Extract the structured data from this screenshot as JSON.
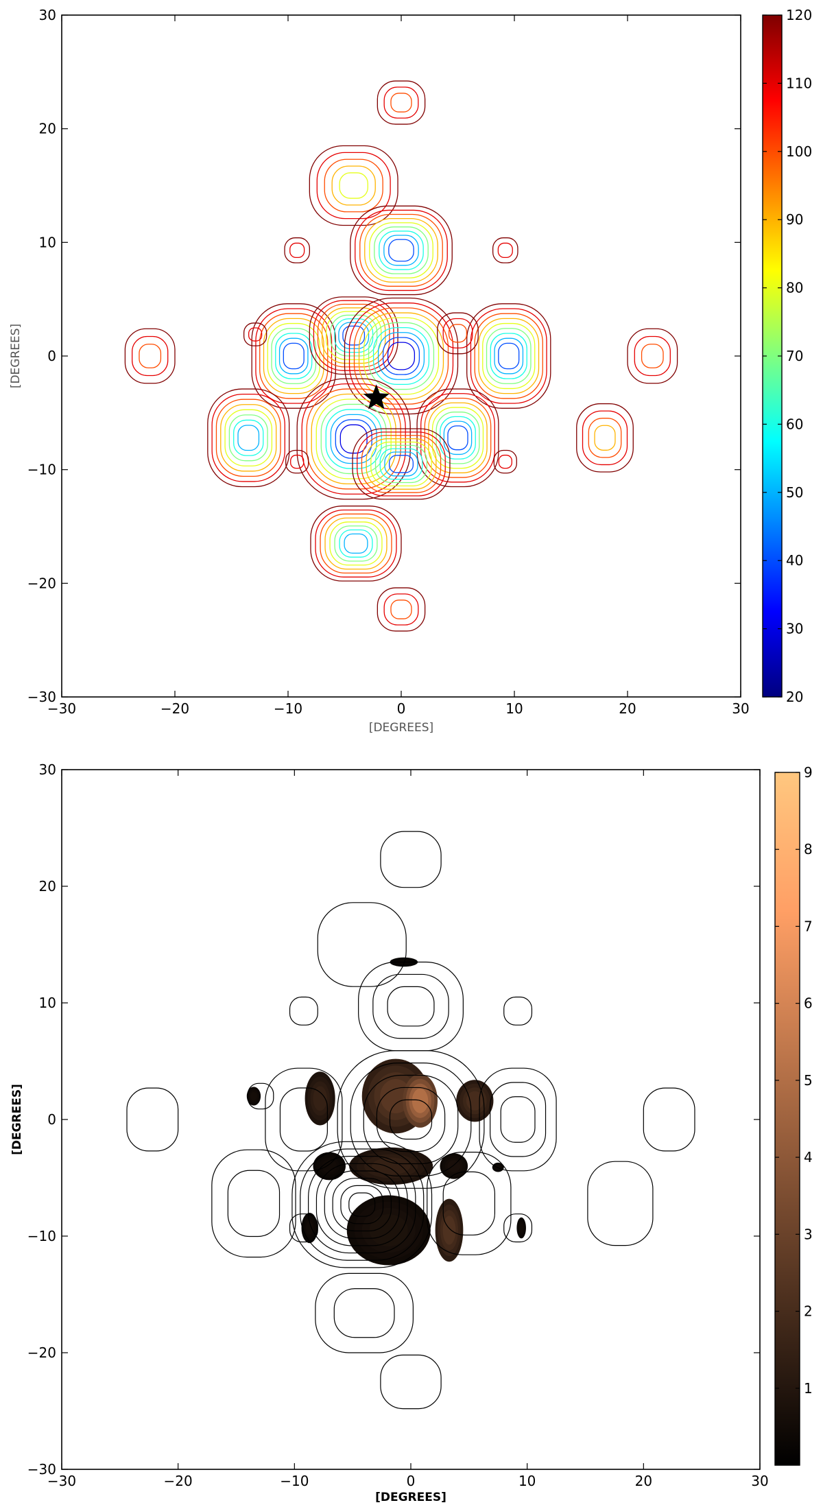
{
  "chart_data": [
    {
      "type": "contour",
      "title": "",
      "xlabel": "[DEGREES]",
      "ylabel": "[DEGREES]",
      "xlim": [
        -30,
        30
      ],
      "ylim": [
        -30,
        30
      ],
      "xticks": [
        "-30",
        "-20",
        "-10",
        "0",
        "10",
        "20",
        "30"
      ],
      "yticks": [
        "-30",
        "-20",
        "-10",
        "0",
        "10",
        "20",
        "30"
      ],
      "grid": false,
      "marker": {
        "shape": "star",
        "x": -2.2,
        "y": -3.7
      },
      "colorbar": {
        "colormap": "jet",
        "range": [
          20,
          120
        ],
        "ticks": [
          "20",
          "30",
          "40",
          "50",
          "60",
          "70",
          "80",
          "90",
          "100",
          "110",
          "120"
        ]
      },
      "lobes": [
        {
          "x": 0,
          "y": 22.3,
          "rx": 2.1,
          "ry": 1.9,
          "peak": 95
        },
        {
          "x": -4.2,
          "y": 15.0,
          "rx": 3.9,
          "ry": 3.5,
          "peak": 75
        },
        {
          "x": 0,
          "y": 9.3,
          "rx": 4.5,
          "ry": 3.9,
          "peak": 40
        },
        {
          "x": -9.2,
          "y": 9.3,
          "rx": 1.1,
          "ry": 1.1,
          "peak": 110
        },
        {
          "x": 9.2,
          "y": 9.3,
          "rx": 1.1,
          "ry": 1.1,
          "peak": 110
        },
        {
          "x": -22.2,
          "y": 0,
          "rx": 2.2,
          "ry": 2.4,
          "peak": 95
        },
        {
          "x": 22.2,
          "y": 0,
          "rx": 2.2,
          "ry": 2.4,
          "peak": 95
        },
        {
          "x": -9.5,
          "y": 0,
          "rx": 3.7,
          "ry": 4.6,
          "peak": 40
        },
        {
          "x": 9.5,
          "y": 0,
          "rx": 3.7,
          "ry": 4.6,
          "peak": 40
        },
        {
          "x": -4.2,
          "y": 1.8,
          "rx": 3.9,
          "ry": 3.4,
          "peak": 40
        },
        {
          "x": 0,
          "y": 0,
          "rx": 5.0,
          "ry": 5.1,
          "peak": 25
        },
        {
          "x": 5.0,
          "y": 2.0,
          "rx": 1.8,
          "ry": 1.8,
          "peak": 100
        },
        {
          "x": -13.5,
          "y": -7.2,
          "rx": 3.6,
          "ry": 4.3,
          "peak": 45
        },
        {
          "x": -4.2,
          "y": -7.3,
          "rx": 5.0,
          "ry": 5.3,
          "peak": 25
        },
        {
          "x": 5.0,
          "y": -7.2,
          "rx": 3.6,
          "ry": 4.3,
          "peak": 40
        },
        {
          "x": 0,
          "y": -9.5,
          "rx": 4.3,
          "ry": 3.1,
          "peak": 40
        },
        {
          "x": 18.0,
          "y": -7.2,
          "rx": 2.5,
          "ry": 3.0,
          "peak": 90
        },
        {
          "x": -9.2,
          "y": -9.3,
          "rx": 1.0,
          "ry": 1.0,
          "peak": 110
        },
        {
          "x": 9.2,
          "y": -9.3,
          "rx": 1.0,
          "ry": 1.0,
          "peak": 110
        },
        {
          "x": -4.0,
          "y": -16.5,
          "rx": 4.0,
          "ry": 3.3,
          "peak": 50
        },
        {
          "x": 0,
          "y": -22.3,
          "rx": 2.1,
          "ry": 1.9,
          "peak": 95
        },
        {
          "x": -12.9,
          "y": 1.9,
          "rx": 1.0,
          "ry": 1.0,
          "peak": 110
        }
      ]
    },
    {
      "type": "contour",
      "title": "",
      "xlabel": "[DEGREES]",
      "ylabel": "[DEGREES]",
      "xlim": [
        -30,
        30
      ],
      "ylim": [
        -30,
        30
      ],
      "xticks": [
        "-30",
        "-20",
        "-10",
        "0",
        "10",
        "20",
        "30"
      ],
      "yticks": [
        "-30",
        "-20",
        "-10",
        "0",
        "10",
        "20",
        "30"
      ],
      "grid": false,
      "colorbar": {
        "colormap": "copper",
        "range": [
          0,
          9
        ],
        "ticks": [
          "1",
          "2",
          "3",
          "4",
          "5",
          "6",
          "7",
          "8",
          "9"
        ]
      },
      "outlines": [
        {
          "x": 0,
          "y": 22.3,
          "rx": 2.6,
          "ry": 2.4,
          "rings": 1
        },
        {
          "x": -4.2,
          "y": 15.0,
          "rx": 3.8,
          "ry": 3.6,
          "rings": 1
        },
        {
          "x": 0,
          "y": 9.7,
          "rx": 4.5,
          "ry": 3.8,
          "rings": 3
        },
        {
          "x": -9.2,
          "y": 9.3,
          "rx": 1.2,
          "ry": 1.2,
          "rings": 1
        },
        {
          "x": 9.2,
          "y": 9.3,
          "rx": 1.2,
          "ry": 1.2,
          "rings": 1
        },
        {
          "x": -22.2,
          "y": 0,
          "rx": 2.2,
          "ry": 2.7,
          "rings": 1
        },
        {
          "x": 22.2,
          "y": 0,
          "rx": 2.2,
          "ry": 2.7,
          "rings": 1
        },
        {
          "x": -12.9,
          "y": 2.0,
          "rx": 1.1,
          "ry": 1.1,
          "rings": 1
        },
        {
          "x": -9.2,
          "y": 0,
          "rx": 3.3,
          "ry": 4.4,
          "rings": 2
        },
        {
          "x": 9.2,
          "y": 0,
          "rx": 3.3,
          "ry": 4.4,
          "rings": 3
        },
        {
          "x": 0,
          "y": 0,
          "rx": 6.3,
          "ry": 5.9,
          "rings": 5
        },
        {
          "x": -13.5,
          "y": -7.2,
          "rx": 3.6,
          "ry": 4.6,
          "rings": 2
        },
        {
          "x": 18.0,
          "y": -7.2,
          "rx": 2.8,
          "ry": 3.6,
          "rings": 1
        },
        {
          "x": -4.2,
          "y": -7.3,
          "rx": 6.0,
          "ry": 5.4,
          "rings": 8
        },
        {
          "x": 5.0,
          "y": -7.2,
          "rx": 3.6,
          "ry": 4.4,
          "rings": 2
        },
        {
          "x": -9.2,
          "y": -9.3,
          "rx": 1.2,
          "ry": 1.2,
          "rings": 1
        },
        {
          "x": 9.2,
          "y": -9.3,
          "rx": 1.2,
          "ry": 1.2,
          "rings": 1
        },
        {
          "x": -4.0,
          "y": -16.6,
          "rx": 4.2,
          "ry": 3.4,
          "rings": 2
        },
        {
          "x": 0,
          "y": -22.5,
          "rx": 2.6,
          "ry": 2.3,
          "rings": 1
        }
      ],
      "shaded": [
        {
          "x": -7.8,
          "y": 1.8,
          "rx": 1.3,
          "ry": 2.3,
          "value": 1.5
        },
        {
          "x": -1.3,
          "y": 2.0,
          "rx": 2.9,
          "ry": 3.2,
          "value": 2.5
        },
        {
          "x": 0.8,
          "y": 1.6,
          "rx": 1.5,
          "ry": 2.3,
          "value": 5.0
        },
        {
          "x": 5.5,
          "y": 1.6,
          "rx": 1.6,
          "ry": 1.8,
          "value": 2.0
        },
        {
          "x": -13.5,
          "y": 2.0,
          "rx": 0.6,
          "ry": 0.8,
          "value": 0.6
        },
        {
          "x": -1.7,
          "y": -4.0,
          "rx": 3.6,
          "ry": 1.6,
          "value": 1.5
        },
        {
          "x": -7.0,
          "y": -4.0,
          "rx": 1.4,
          "ry": 1.2,
          "value": 0.5
        },
        {
          "x": 3.7,
          "y": -4.0,
          "rx": 1.2,
          "ry": 1.1,
          "value": 0.7
        },
        {
          "x": -1.9,
          "y": -9.5,
          "rx": 3.6,
          "ry": 3.0,
          "value": 0.8
        },
        {
          "x": 3.3,
          "y": -9.5,
          "rx": 1.2,
          "ry": 2.7,
          "value": 2.2
        },
        {
          "x": -8.7,
          "y": -9.3,
          "rx": 0.7,
          "ry": 1.3,
          "value": 0.5
        },
        {
          "x": 9.5,
          "y": -9.3,
          "rx": 0.4,
          "ry": 0.9,
          "value": 0.5
        },
        {
          "x": -0.6,
          "y": 13.5,
          "rx": 1.2,
          "ry": 0.4,
          "value": 0.3
        },
        {
          "x": 7.5,
          "y": -4.1,
          "rx": 0.5,
          "ry": 0.4,
          "value": 0.4
        }
      ]
    }
  ]
}
